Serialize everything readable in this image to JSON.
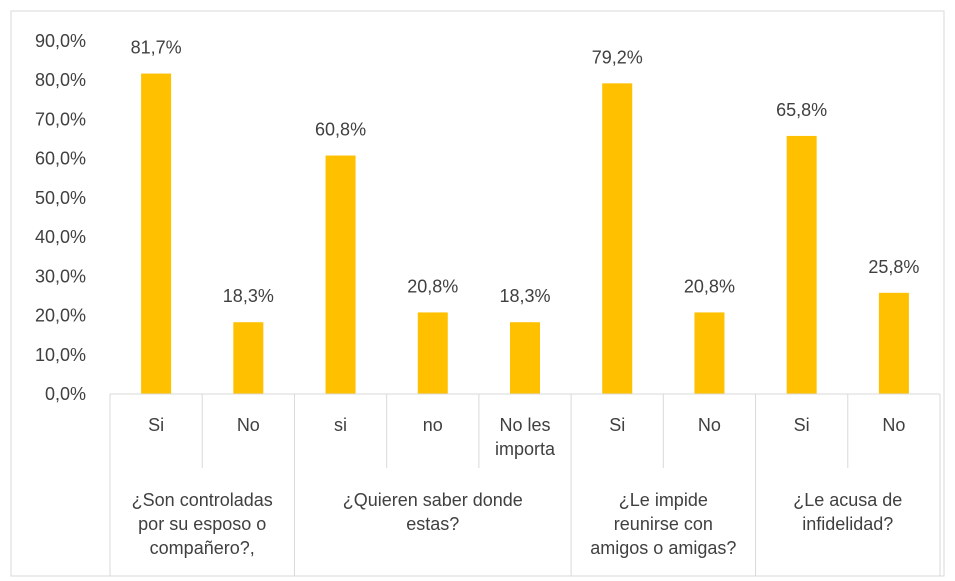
{
  "chart_data": {
    "type": "bar",
    "title": "",
    "xlabel": "",
    "ylabel": "",
    "ylim": [
      0,
      90
    ],
    "ytick_step": 10,
    "y_tick_labels": [
      "0,0%",
      "10,0%",
      "20,0%",
      "30,0%",
      "40,0%",
      "50,0%",
      "60,0%",
      "70,0%",
      "80,0%",
      "90,0%"
    ],
    "grid": false,
    "legend": "none",
    "bar_color": "#FFC000",
    "groups": [
      {
        "label_lines": [
          "¿Son controladas",
          "por su esposo o",
          "compañero?,"
        ],
        "categories": [
          {
            "label_lines": [
              "Si"
            ],
            "value": 81.7,
            "value_label": "81,7%"
          },
          {
            "label_lines": [
              "No"
            ],
            "value": 18.3,
            "value_label": "18,3%"
          }
        ]
      },
      {
        "label_lines": [
          "¿Quieren saber donde",
          "estas?"
        ],
        "categories": [
          {
            "label_lines": [
              "si"
            ],
            "value": 60.8,
            "value_label": "60,8%"
          },
          {
            "label_lines": [
              "no"
            ],
            "value": 20.8,
            "value_label": "20,8%"
          },
          {
            "label_lines": [
              "No les",
              "importa"
            ],
            "value": 18.3,
            "value_label": "18,3%"
          }
        ]
      },
      {
        "label_lines": [
          "¿Le impide",
          "reunirse con",
          "amigos o amigas?"
        ],
        "categories": [
          {
            "label_lines": [
              "Si"
            ],
            "value": 79.2,
            "value_label": "79,2%"
          },
          {
            "label_lines": [
              "No"
            ],
            "value": 20.8,
            "value_label": "20,8%"
          }
        ]
      },
      {
        "label_lines": [
          "¿Le acusa de",
          "infidelidad?"
        ],
        "categories": [
          {
            "label_lines": [
              "Si"
            ],
            "value": 65.8,
            "value_label": "65,8%"
          },
          {
            "label_lines": [
              "No"
            ],
            "value": 25.8,
            "value_label": "25,8%"
          }
        ]
      }
    ]
  }
}
